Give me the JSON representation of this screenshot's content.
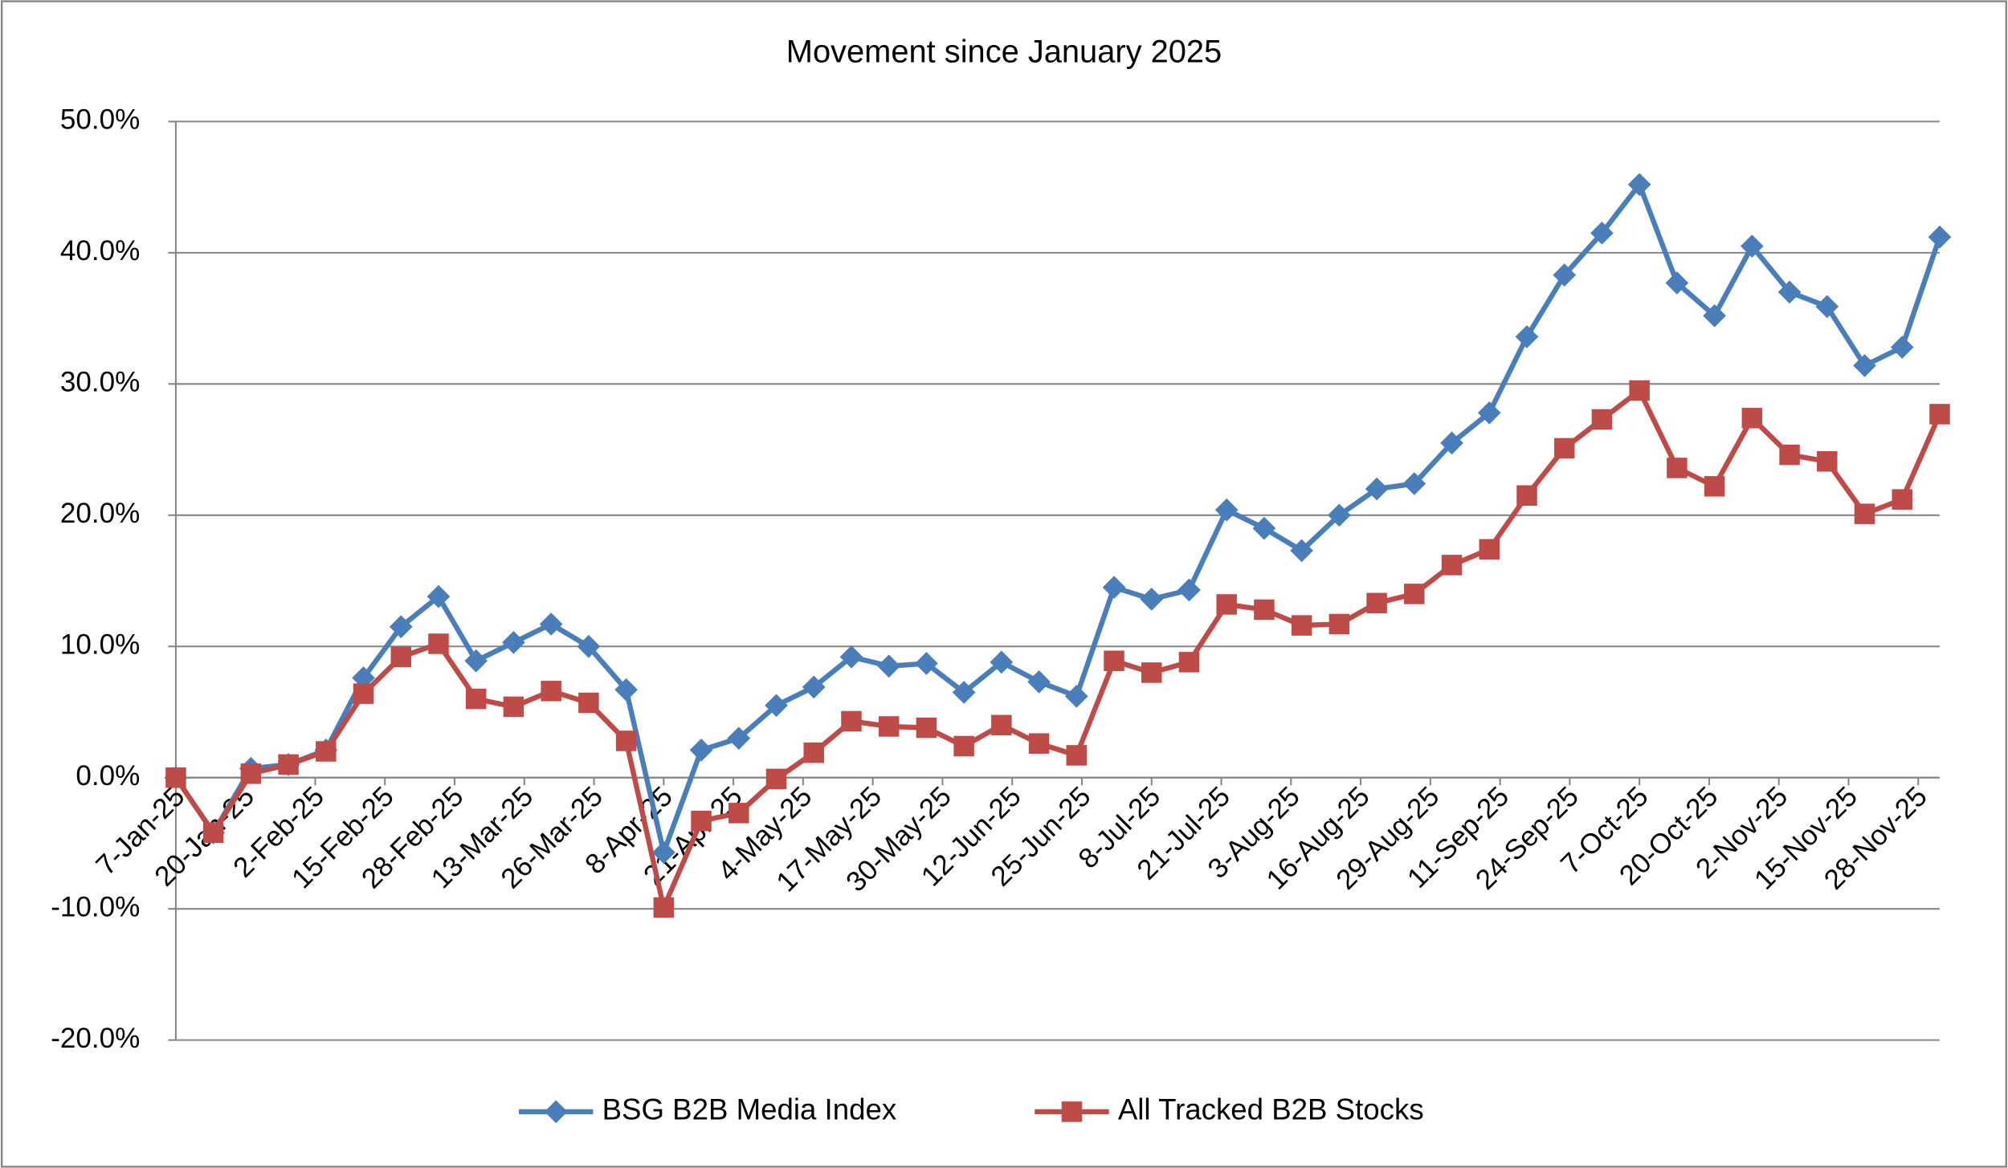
{
  "chart_data": {
    "type": "line",
    "title": "Movement since January 2025",
    "x": [
      "2025-01-07",
      "2025-01-14",
      "2025-01-21",
      "2025-01-28",
      "2025-02-04",
      "2025-02-11",
      "2025-02-18",
      "2025-02-25",
      "2025-03-04",
      "2025-03-11",
      "2025-03-18",
      "2025-03-25",
      "2025-04-01",
      "2025-04-08",
      "2025-04-15",
      "2025-04-22",
      "2025-04-29",
      "2025-05-06",
      "2025-05-13",
      "2025-05-20",
      "2025-05-27",
      "2025-06-03",
      "2025-06-10",
      "2025-06-17",
      "2025-06-24",
      "2025-07-01",
      "2025-07-08",
      "2025-07-15",
      "2025-07-22",
      "2025-07-29",
      "2025-08-05",
      "2025-08-12",
      "2025-08-19",
      "2025-08-26",
      "2025-09-02",
      "2025-09-09",
      "2025-09-16",
      "2025-09-23",
      "2025-09-30",
      "2025-10-07",
      "2025-10-14",
      "2025-10-21",
      "2025-10-28",
      "2025-11-04",
      "2025-11-11",
      "2025-11-18",
      "2025-11-25",
      "2025-12-02"
    ],
    "series": [
      {
        "name": "BSG B2B Media Index",
        "color": "#4a7ebb",
        "marker": "diamond",
        "values": [
          0,
          -4.2,
          0.7,
          1.0,
          2.1,
          7.6,
          11.5,
          13.8,
          8.9,
          10.3,
          11.7,
          10.0,
          6.7,
          -5.7,
          2.1,
          3.0,
          5.5,
          6.9,
          9.2,
          8.5,
          8.7,
          6.5,
          8.8,
          7.3,
          6.2,
          14.5,
          13.6,
          14.3,
          20.4,
          19.0,
          17.3,
          20.0,
          22.0,
          22.4,
          25.5,
          27.8,
          33.6,
          38.3,
          41.5,
          45.2,
          37.7,
          35.2,
          40.5,
          37.0,
          35.9,
          31.4,
          32.8,
          41.2
        ]
      },
      {
        "name": "All Tracked B2B Stocks",
        "color": "#be4b48",
        "marker": "square",
        "values": [
          0,
          -4.2,
          0.3,
          1.0,
          2.0,
          6.4,
          9.2,
          10.2,
          6.0,
          5.4,
          6.6,
          5.7,
          2.8,
          -9.9,
          -3.3,
          -2.7,
          -0.1,
          1.9,
          4.3,
          3.9,
          3.8,
          2.4,
          4.0,
          2.6,
          1.7,
          8.9,
          8.0,
          8.8,
          13.2,
          12.8,
          11.6,
          11.7,
          13.3,
          14.0,
          16.2,
          17.4,
          21.5,
          25.1,
          27.3,
          29.5,
          23.6,
          22.2,
          27.4,
          24.6,
          24.1,
          20.1,
          21.2,
          27.7
        ]
      }
    ],
    "xlim": [
      "2025-01-07",
      "2025-12-02"
    ],
    "xticks": [
      {
        "value": "2025-01-07",
        "label": "7-Jan-25"
      },
      {
        "value": "2025-01-20",
        "label": "20-Jan-25"
      },
      {
        "value": "2025-02-02",
        "label": "2-Feb-25"
      },
      {
        "value": "2025-02-15",
        "label": "15-Feb-25"
      },
      {
        "value": "2025-02-28",
        "label": "28-Feb-25"
      },
      {
        "value": "2025-03-13",
        "label": "13-Mar-25"
      },
      {
        "value": "2025-03-26",
        "label": "26-Mar-25"
      },
      {
        "value": "2025-04-08",
        "label": "8-Apr-25"
      },
      {
        "value": "2025-04-21",
        "label": "21-Apr-25"
      },
      {
        "value": "2025-05-04",
        "label": "4-May-25"
      },
      {
        "value": "2025-05-17",
        "label": "17-May-25"
      },
      {
        "value": "2025-05-30",
        "label": "30-May-25"
      },
      {
        "value": "2025-06-12",
        "label": "12-Jun-25"
      },
      {
        "value": "2025-06-25",
        "label": "25-Jun-25"
      },
      {
        "value": "2025-07-08",
        "label": "8-Jul-25"
      },
      {
        "value": "2025-07-21",
        "label": "21-Jul-25"
      },
      {
        "value": "2025-08-03",
        "label": "3-Aug-25"
      },
      {
        "value": "2025-08-16",
        "label": "16-Aug-25"
      },
      {
        "value": "2025-08-29",
        "label": "29-Aug-25"
      },
      {
        "value": "2025-09-11",
        "label": "11-Sep-25"
      },
      {
        "value": "2025-09-24",
        "label": "24-Sep-25"
      },
      {
        "value": "2025-10-07",
        "label": "7-Oct-25"
      },
      {
        "value": "2025-10-20",
        "label": "20-Oct-25"
      },
      {
        "value": "2025-11-02",
        "label": "2-Nov-25"
      },
      {
        "value": "2025-11-15",
        "label": "15-Nov-25"
      },
      {
        "value": "2025-11-28",
        "label": "28-Nov-25"
      }
    ],
    "ylim": [
      -20,
      50
    ],
    "yticks": [
      {
        "value": -20,
        "label": "-20.0%"
      },
      {
        "value": -10,
        "label": "-10.0%"
      },
      {
        "value": 0,
        "label": "0.0%"
      },
      {
        "value": 10,
        "label": "10.0%"
      },
      {
        "value": 20,
        "label": "20.0%"
      },
      {
        "value": 30,
        "label": "30.0%"
      },
      {
        "value": 40,
        "label": "40.0%"
      },
      {
        "value": 50,
        "label": "50.0%"
      }
    ],
    "grid": true,
    "legend": "bottom"
  }
}
